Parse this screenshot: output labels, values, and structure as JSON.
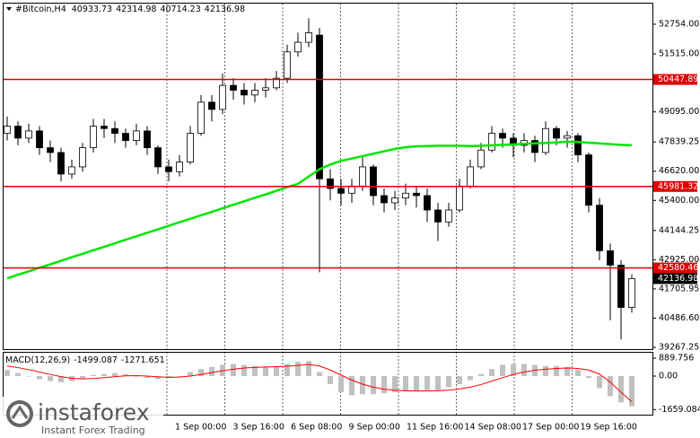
{
  "chart_data": {
    "type": "candlestick",
    "title": "#Bitcoin,H4",
    "up_color": "#ffffff",
    "down_color": "#000000",
    "open": [
      48200,
      48500,
      48000,
      48300,
      47600,
      47400,
      46500,
      46800,
      47600,
      48500,
      48400,
      48200,
      47900,
      48300,
      47600,
      46800,
      46600,
      47000,
      48200,
      49500,
      49200,
      50200,
      50000,
      49800,
      50000,
      50100,
      50500,
      51600,
      52000,
      52300,
      46300,
      45900,
      45700,
      46000,
      46800,
      45600,
      45300,
      45500,
      45700,
      45600,
      45000,
      44500,
      45000,
      46000,
      46800,
      47500,
      48200,
      48000,
      47700,
      47900,
      47400,
      48400,
      48000,
      48100,
      47300,
      45200,
      43300,
      42700,
      40933.73
    ],
    "high": [
      48900,
      48700,
      48600,
      48500,
      47900,
      47600,
      47100,
      47800,
      48800,
      48800,
      48700,
      48400,
      48600,
      48500,
      47700,
      47100,
      47300,
      48500,
      49800,
      49800,
      50700,
      50500,
      50300,
      50300,
      50500,
      50800,
      51900,
      52400,
      53000,
      52600,
      46700,
      46300,
      46300,
      47200,
      46900,
      45900,
      45800,
      46100,
      46000,
      45900,
      45300,
      45300,
      46300,
      47100,
      47800,
      48500,
      48400,
      48200,
      48200,
      48100,
      48700,
      48500,
      48300,
      48200,
      47400,
      45500,
      43600,
      42900,
      42314.98
    ],
    "low": [
      47900,
      47700,
      47800,
      47300,
      47000,
      46200,
      46300,
      46600,
      47400,
      48000,
      47800,
      47600,
      47700,
      47300,
      46500,
      46200,
      46400,
      46900,
      48100,
      48700,
      49000,
      49600,
      49400,
      49500,
      49700,
      50000,
      50300,
      51400,
      51800,
      42400,
      45400,
      45200,
      45300,
      45800,
      45200,
      44900,
      45000,
      45200,
      45100,
      44500,
      43700,
      44300,
      44900,
      45900,
      46700,
      47400,
      47600,
      47200,
      47400,
      47000,
      47300,
      47700,
      47600,
      47000,
      44900,
      42900,
      40400,
      39600,
      40714.23
    ],
    "close": [
      48500,
      48000,
      48300,
      47600,
      47400,
      46500,
      46800,
      47600,
      48500,
      48400,
      48200,
      47900,
      48300,
      47600,
      46800,
      46600,
      47000,
      48200,
      49500,
      49200,
      50200,
      50000,
      49800,
      50000,
      50100,
      50500,
      51600,
      52000,
      52400,
      46300,
      45900,
      45700,
      46000,
      46800,
      45600,
      45300,
      45500,
      45700,
      45600,
      45000,
      44500,
      45000,
      46000,
      46800,
      47500,
      48200,
      48000,
      47700,
      47900,
      47400,
      48400,
      48000,
      48100,
      47300,
      45200,
      43300,
      42700,
      40933.73,
      42136.98
    ],
    "ma": {
      "color": "#00e600",
      "values": [
        42150,
        42300,
        42440,
        42590,
        42730,
        42880,
        43030,
        43170,
        43320,
        43460,
        43610,
        43760,
        43900,
        44050,
        44190,
        44340,
        44490,
        44630,
        44780,
        44920,
        45070,
        45220,
        45360,
        45510,
        45650,
        45800,
        45950,
        46090,
        46400,
        46700,
        46900,
        47050,
        47150,
        47250,
        47350,
        47450,
        47550,
        47620,
        47660,
        47670,
        47680,
        47680,
        47680,
        47670,
        47680,
        47700,
        47720,
        47740,
        47760,
        47780,
        47800,
        47820,
        47850,
        47840,
        47810,
        47780,
        47750,
        47720,
        47700
      ]
    },
    "levels": [
      {
        "value": 50447.89,
        "color": "#e00000"
      },
      {
        "value": 45981.32,
        "color": "#e00000"
      },
      {
        "value": 42580.46,
        "color": "#e00000"
      }
    ],
    "ylim": [
      39155,
      53765
    ],
    "yticks": [
      {
        "value": 52754,
        "label": "52754.00"
      },
      {
        "value": 51515,
        "label": "51515.00"
      },
      {
        "value": 49095,
        "label": "49095.00"
      },
      47839.25,
      {
        "value": 46620,
        "label": "46620.00"
      },
      {
        "value": 45400,
        "label": "45400.00"
      },
      44144.25,
      {
        "value": 42925,
        "label": "42925.00"
      },
      41705.95,
      {
        "value": 40486.6,
        "label": "40486.60"
      },
      39267.25
    ],
    "x_labels": [
      "1 Sep 00:00",
      "3 Sep 16:00",
      "6 Sep 08:00",
      "9 Sep 00:00",
      "11 Sep 16:00",
      "14 Sep 08:00",
      "17 Sep 00:00",
      "19 Sep 16:00"
    ],
    "macd": {
      "label": "MACD(12,26,9)",
      "histogram": {
        "color": "#c0c0c0",
        "values": [
          300,
          150,
          0,
          -150,
          -250,
          -300,
          -250,
          -100,
          50,
          100,
          150,
          100,
          0,
          -100,
          -150,
          -100,
          0,
          200,
          350,
          450,
          550,
          600,
          550,
          500,
          450,
          500,
          600,
          700,
          750,
          200,
          -400,
          -800,
          -950,
          -900,
          -900,
          -850,
          -800,
          -750,
          -750,
          -700,
          -700,
          -550,
          -400,
          -200,
          100,
          350,
          550,
          600,
          600,
          550,
          500,
          500,
          450,
          300,
          -100,
          -600,
          -1000,
          -1300,
          -1499.087
        ]
      },
      "signal": {
        "color": "#ff0000",
        "values": [
          500,
          420,
          320,
          200,
          80,
          -30,
          -110,
          -140,
          -120,
          -80,
          -30,
          10,
          20,
          0,
          -40,
          -60,
          -50,
          0,
          80,
          170,
          260,
          340,
          400,
          430,
          450,
          460,
          490,
          530,
          580,
          500,
          300,
          50,
          -200,
          -400,
          -550,
          -650,
          -700,
          -730,
          -740,
          -740,
          -730,
          -700,
          -640,
          -550,
          -420,
          -250,
          -80,
          80,
          200,
          290,
          340,
          380,
          400,
          380,
          300,
          100,
          -300,
          -800,
          -1271.651
        ]
      },
      "ylim": [
        -1913,
        1201
      ],
      "yticks": [
        889.756,
        {
          "value": 0,
          "label": "0.00"
        },
        -1659.084
      ]
    }
  },
  "watermark": {
    "brand": "instaforex",
    "tagline": "Instant Forex Trading"
  }
}
